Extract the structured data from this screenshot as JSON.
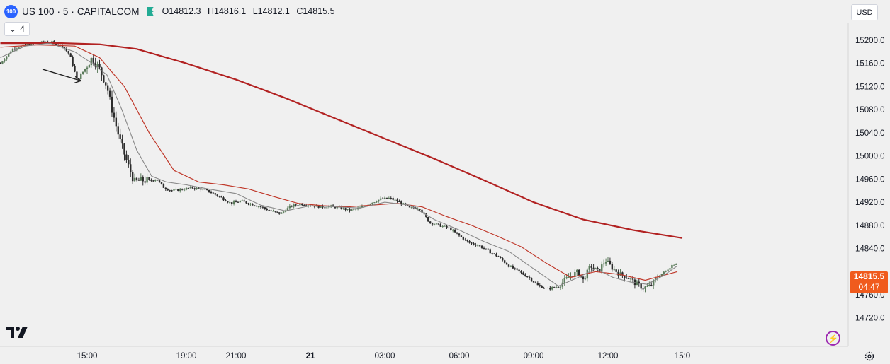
{
  "header": {
    "symbol_badge": "100",
    "title": "US 100 · 5 · CAPITALCOM",
    "open": "O14812.3",
    "high": "H14816.1",
    "low": "L14812.1",
    "close": "C14815.5",
    "indicators_count": "4",
    "currency": "USD"
  },
  "last_price": {
    "value": "14815.5",
    "countdown": "04:47"
  },
  "colors": {
    "background": "#f0f0f0",
    "up_candle": "#5a7a5a",
    "down_candle": "#2b2b2b",
    "sma_long": "#b22222",
    "sma_medium": "#c0392b",
    "sma_short": "#888888",
    "price_tag": "#f05b1d",
    "annotation_arrow": "#222222"
  },
  "chart_data": {
    "type": "line",
    "description_series": "5-minute candlesticks with three moving averages",
    "ylim": [
      14700,
      15235
    ],
    "y_ticks": [
      15200.0,
      15160.0,
      15120.0,
      15080.0,
      15040.0,
      15000.0,
      14960.0,
      14920.0,
      14880.0,
      14840.0,
      14760.0,
      14720.0
    ],
    "y_tick_labels": [
      "15200.0",
      "15160.0",
      "15120.0",
      "15080.0",
      "15040.0",
      "15000.0",
      "14960.0",
      "14920.0",
      "14880.0",
      "14840.0",
      "14760.0",
      "14720.0"
    ],
    "x_tick_labels": [
      "15:00",
      "19:00",
      "21:00",
      "21",
      "03:00",
      "06:00",
      "09:00",
      "12:00",
      "15:0"
    ],
    "x_tick_hours": [
      15,
      19,
      21,
      24,
      27,
      30,
      33,
      36,
      39
    ],
    "x_start_hour": 11.5,
    "x_end_hour": 39.2,
    "price_series": {
      "hours": [
        11.5,
        12.0,
        12.5,
        13.0,
        13.5,
        14.0,
        14.3,
        14.6,
        14.9,
        15.2,
        15.5,
        15.8,
        16.0,
        16.3,
        16.6,
        16.9,
        17.2,
        17.5,
        17.8,
        18.1,
        18.4,
        18.8,
        19.2,
        19.6,
        20.0,
        20.4,
        20.8,
        21.2,
        21.6,
        22.0,
        22.4,
        22.8,
        23.2,
        23.6,
        24.0,
        24.4,
        24.8,
        25.2,
        25.6,
        26.0,
        26.4,
        26.8,
        27.2,
        27.6,
        28.0,
        28.4,
        28.8,
        29.2,
        29.6,
        30.0,
        30.4,
        30.8,
        31.2,
        31.6,
        32.0,
        32.4,
        32.8,
        33.2,
        33.6,
        34.0,
        34.4,
        34.8,
        35.0,
        35.3,
        35.6,
        35.9,
        36.2,
        36.5,
        36.8,
        37.1,
        37.4,
        37.7,
        38.0,
        38.3,
        38.6,
        38.8
      ],
      "values": [
        15160,
        15185,
        15192,
        15195,
        15198,
        15190,
        15175,
        15130,
        15150,
        15170,
        15150,
        15120,
        15080,
        15030,
        14990,
        14955,
        14958,
        14957,
        14960,
        14945,
        14940,
        14942,
        14945,
        14943,
        14937,
        14928,
        14918,
        14922,
        14917,
        14912,
        14905,
        14900,
        14913,
        14917,
        14915,
        14912,
        14913,
        14910,
        14906,
        14910,
        14918,
        14925,
        14927,
        14920,
        14910,
        14910,
        14885,
        14880,
        14875,
        14862,
        14850,
        14845,
        14835,
        14825,
        14810,
        14800,
        14790,
        14775,
        14770,
        14775,
        14790,
        14800,
        14785,
        14810,
        14800,
        14820,
        14805,
        14795,
        14790,
        14780,
        14772,
        14775,
        14790,
        14800,
        14812,
        14815.5
      ]
    },
    "series": [
      {
        "hours": [
          11.5,
          14.0,
          15.5,
          17.0,
          19.0,
          21.0,
          23.0,
          25.0,
          27.0,
          29.0,
          31.0,
          33.0,
          35.0,
          37.0,
          39.0
        ],
        "values": [
          15195,
          15195,
          15193,
          15185,
          15160,
          15132,
          15100,
          15065,
          15030,
          14995,
          14958,
          14920,
          14890,
          14872,
          14858
        ]
      },
      {
        "hours": [
          11.5,
          13.0,
          14.5,
          15.5,
          16.5,
          17.5,
          18.5,
          19.5,
          20.5,
          21.5,
          22.5,
          23.5,
          24.5,
          25.5,
          26.5,
          27.5,
          28.5,
          29.5,
          30.5,
          31.5,
          32.5,
          33.5,
          34.5,
          35.5,
          36.5,
          37.5,
          38.8
        ],
        "values": [
          15188,
          15192,
          15190,
          15170,
          15120,
          15040,
          14975,
          14955,
          14950,
          14943,
          14930,
          14918,
          14914,
          14912,
          14915,
          14918,
          14912,
          14895,
          14880,
          14862,
          14843,
          14815,
          14790,
          14800,
          14795,
          14785,
          14800
        ]
      },
      {
        "hours": [
          11.5,
          12.5,
          13.5,
          14.5,
          15.2,
          15.8,
          16.4,
          17.0,
          17.6,
          18.2,
          19.0,
          20.0,
          21.0,
          22.0,
          23.0,
          24.0,
          25.0,
          26.0,
          27.0,
          28.0,
          29.0,
          30.0,
          31.0,
          32.0,
          33.0,
          34.0,
          34.8,
          35.5,
          36.2,
          36.9,
          37.6,
          38.3,
          38.8
        ],
        "values": [
          15170,
          15190,
          15195,
          15180,
          15160,
          15140,
          15080,
          15010,
          14965,
          14955,
          14950,
          14942,
          14935,
          14915,
          14905,
          14914,
          14912,
          14910,
          14920,
          14915,
          14890,
          14872,
          14852,
          14835,
          14805,
          14775,
          14790,
          14805,
          14790,
          14782,
          14778,
          14795,
          14810
        ]
      }
    ],
    "annotation": "arrow pointing to the start of the selloff"
  }
}
